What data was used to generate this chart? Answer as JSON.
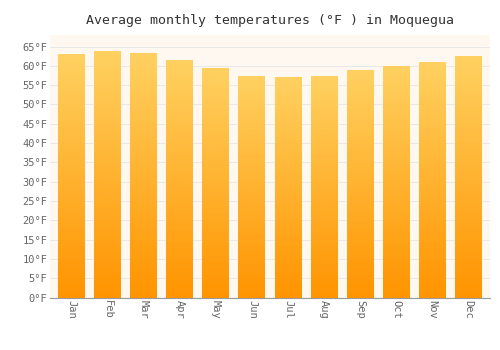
{
  "title": "Average monthly temperatures (°F ) in Moquegua",
  "months": [
    "Jan",
    "Feb",
    "Mar",
    "Apr",
    "May",
    "Jun",
    "Jul",
    "Aug",
    "Sep",
    "Oct",
    "Nov",
    "Dec"
  ],
  "values": [
    63.0,
    63.8,
    63.3,
    61.5,
    59.5,
    57.5,
    57.0,
    57.5,
    59.0,
    60.0,
    61.0,
    62.5
  ],
  "bar_color": "#FFA500",
  "bar_color_light": "#FFD060",
  "ylim": [
    0,
    68
  ],
  "yticks": [
    0,
    5,
    10,
    15,
    20,
    25,
    30,
    35,
    40,
    45,
    50,
    55,
    60,
    65
  ],
  "ytick_labels": [
    "0°F",
    "5°F",
    "10°F",
    "15°F",
    "20°F",
    "25°F",
    "30°F",
    "35°F",
    "40°F",
    "45°F",
    "50°F",
    "55°F",
    "60°F",
    "65°F"
  ],
  "background_color": "#ffffff",
  "plot_bg_color": "#FFF8F0",
  "grid_color": "#e8e8e8",
  "title_fontsize": 9.5,
  "tick_fontsize": 7.5,
  "bar_width": 0.75,
  "title_font": "monospace"
}
